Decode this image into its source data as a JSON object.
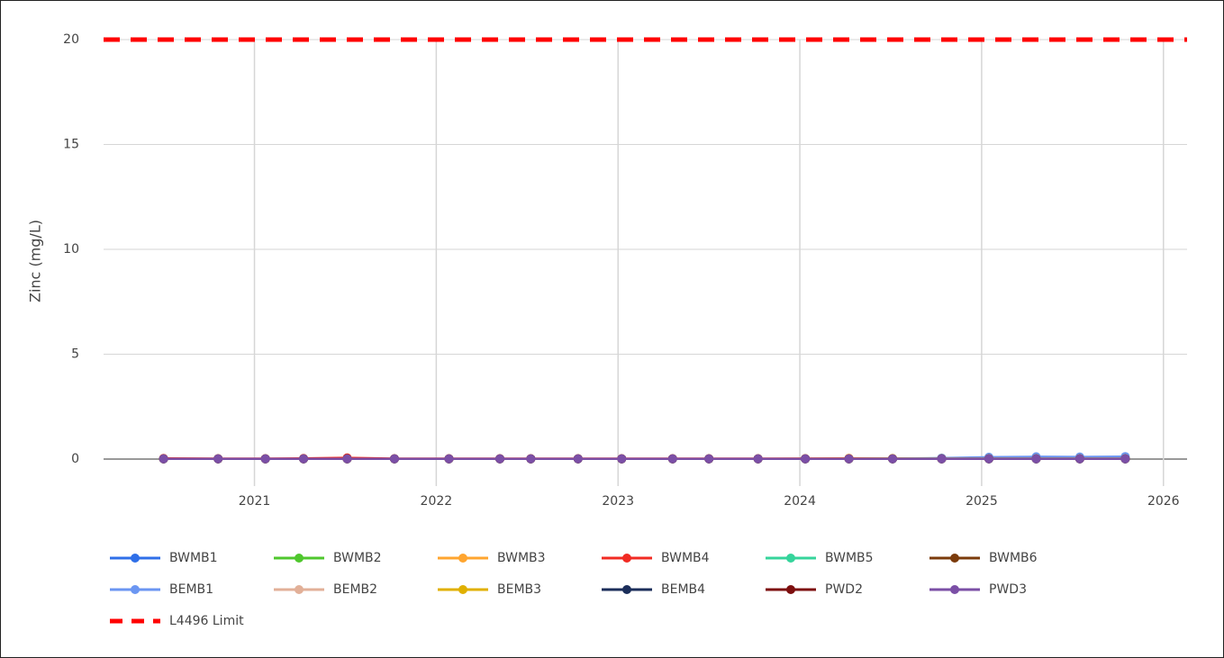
{
  "chart_data": {
    "type": "line",
    "y_label": "Zinc (mg/L)",
    "xlim": [
      2020.17,
      2026.13
    ],
    "xticks": [
      2021,
      2022,
      2023,
      2024,
      2025,
      2026
    ],
    "ylim": [
      0,
      20
    ],
    "yticks": [
      0,
      5,
      10,
      15,
      20
    ],
    "grid": true,
    "legend": "bottom",
    "x": [
      2020.5,
      2020.8,
      2021.06,
      2021.27,
      2021.51,
      2021.77,
      2022.07,
      2022.35,
      2022.52,
      2022.78,
      2023.02,
      2023.3,
      2023.5,
      2023.77,
      2024.03,
      2024.27,
      2024.51,
      2024.78,
      2025.04,
      2025.3,
      2025.54,
      2025.79
    ],
    "series": [
      {
        "name": "BWMB1",
        "color": "#2f6fe8",
        "values": [
          0.01,
          0.01,
          0.01,
          0.01,
          0.02,
          0.01,
          0.01,
          0.01,
          0.01,
          0.01,
          0.01,
          0.01,
          0.01,
          0.01,
          0.01,
          0.01,
          0.01,
          0.02,
          0.02,
          0.02,
          0.02,
          0.02
        ]
      },
      {
        "name": "BWMB2",
        "color": "#4fc72d",
        "values": [
          0.01,
          0.01,
          0.01,
          0.01,
          0.01,
          0.01,
          0.01,
          0.01,
          0.01,
          0.01,
          0.01,
          0.01,
          0.01,
          0.01,
          0.01,
          0.01,
          0.01,
          0.01,
          0.01,
          0.01,
          0.01,
          0.01
        ]
      },
      {
        "name": "BWMB3",
        "color": "#ffa52f",
        "values": [
          0.02,
          0.01,
          0.01,
          0.01,
          0.03,
          0.01,
          0.01,
          0.01,
          0.01,
          0.01,
          0.01,
          0.01,
          0.01,
          0.01,
          0.02,
          0.04,
          0.03,
          0.03,
          0.03,
          0.03,
          0.03,
          0.03
        ]
      },
      {
        "name": "BWMB4",
        "color": "#f12b23",
        "values": [
          0.03,
          0.02,
          0.02,
          0.03,
          0.06,
          0.02,
          0.02,
          0.02,
          0.02,
          0.02,
          0.02,
          0.02,
          0.02,
          0.02,
          0.02,
          0.02,
          0.02,
          0.02,
          0.02,
          0.02,
          0.02,
          0.02
        ]
      },
      {
        "name": "BWMB5",
        "color": "#35d49b",
        "values": [
          0.01,
          0.01,
          0.01,
          0.01,
          0.01,
          0.01,
          0.01,
          0.01,
          0.01,
          0.01,
          0.01,
          0.01,
          0.01,
          0.01,
          0.01,
          0.01,
          0.01,
          0.01,
          0.01,
          0.01,
          0.01,
          0.01
        ]
      },
      {
        "name": "BWMB6",
        "color": "#7b3b0b",
        "values": [
          0.01,
          0.01,
          0.01,
          0.01,
          0.01,
          0.01,
          0.01,
          0.01,
          0.01,
          0.01,
          0.01,
          0.01,
          0.01,
          0.01,
          0.01,
          0.01,
          0.01,
          0.01,
          0.01,
          0.01,
          0.01,
          0.01
        ]
      },
      {
        "name": "BEMB1",
        "color": "#6b96f2",
        "values": [
          0.01,
          0.01,
          0.01,
          0.01,
          0.01,
          0.01,
          0.01,
          0.01,
          0.01,
          0.01,
          0.01,
          0.01,
          0.01,
          0.01,
          0.01,
          0.01,
          0.02,
          0.05,
          0.09,
          0.11,
          0.1,
          0.12
        ]
      },
      {
        "name": "BEMB2",
        "color": "#e2b098",
        "values": [
          0.01,
          0.01,
          0.01,
          0.01,
          0.01,
          0.01,
          0.01,
          0.01,
          0.01,
          0.01,
          0.01,
          0.01,
          0.01,
          0.01,
          0.01,
          0.01,
          0.01,
          0.01,
          0.01,
          0.01,
          0.01,
          0.01
        ]
      },
      {
        "name": "BEMB3",
        "color": "#e0b000",
        "values": [
          0.01,
          0.01,
          0.01,
          0.01,
          0.01,
          0.01,
          0.01,
          0.01,
          0.01,
          0.01,
          0.01,
          0.01,
          0.01,
          0.01,
          0.01,
          0.01,
          0.02,
          0.02,
          0.02,
          0.02,
          0.02,
          0.02
        ]
      },
      {
        "name": "BEMB4",
        "color": "#1b2e5a",
        "values": [
          0.01,
          0.01,
          0.01,
          0.01,
          0.01,
          0.01,
          0.01,
          0.01,
          0.01,
          0.01,
          0.01,
          0.01,
          0.01,
          0.01,
          0.01,
          0.01,
          0.01,
          0.01,
          0.01,
          0.01,
          0.01,
          0.01
        ]
      },
      {
        "name": "PWD2",
        "color": "#7d0f0f",
        "values": [
          0.01,
          0.01,
          0.01,
          0.01,
          0.01,
          0.01,
          0.01,
          0.01,
          0.01,
          0.01,
          0.01,
          0.01,
          0.01,
          0.01,
          0.01,
          0.01,
          0.01,
          0.01,
          0.01,
          0.01,
          0.01,
          0.01
        ]
      },
      {
        "name": "PWD3",
        "color": "#7b4fa6",
        "values": [
          0.01,
          0.01,
          0.01,
          0.01,
          0.01,
          0.01,
          0.01,
          0.01,
          0.01,
          0.01,
          0.01,
          0.01,
          0.01,
          0.01,
          0.01,
          0.01,
          0.01,
          0.01,
          0.01,
          0.01,
          0.01,
          0.01
        ]
      },
      {
        "name": "L4496 Limit",
        "color": "#ff0000",
        "style": "dashed",
        "x": [
          2020.17,
          2026.13
        ],
        "values": [
          20,
          20
        ]
      }
    ]
  }
}
